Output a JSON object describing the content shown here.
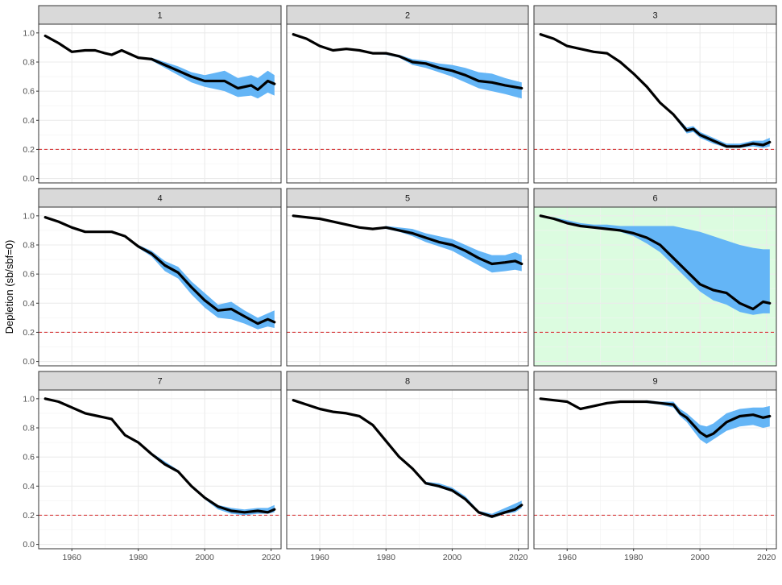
{
  "chart_data": {
    "type": "line",
    "title": "",
    "xlabel": "",
    "ylabel": "Depletion (sb/sbf=0)",
    "xlim": [
      1950,
      2023
    ],
    "ylim": [
      -0.03,
      1.06
    ],
    "x_ticks": [
      1960,
      1980,
      2000,
      2020
    ],
    "y_ticks": [
      0.0,
      0.2,
      0.4,
      0.6,
      0.8,
      1.0
    ],
    "y_tick_labels": [
      "0.0",
      "0.2",
      "0.4",
      "0.6",
      "0.8",
      "1.0"
    ],
    "reference_line": {
      "y": 0.2,
      "style": "dashed",
      "color": "#d62728"
    },
    "grid": true,
    "legend": "none",
    "colors": {
      "line": "#000000",
      "ribbon": "#64b5f6",
      "highlight_background": "#dcfce0",
      "strip_background": "#d9d9d9",
      "grid": "#ebebeb"
    },
    "panels": [
      {
        "label": "1",
        "highlight": false,
        "x": [
          1952,
          1956,
          1960,
          1964,
          1967,
          1970,
          1972,
          1975,
          1978,
          1980,
          1984,
          1988,
          1992,
          1996,
          2000,
          2004,
          2006,
          2010,
          2014,
          2016,
          2019,
          2021
        ],
        "y": [
          0.98,
          0.93,
          0.87,
          0.88,
          0.88,
          0.86,
          0.85,
          0.88,
          0.85,
          0.83,
          0.82,
          0.78,
          0.74,
          0.7,
          0.67,
          0.67,
          0.67,
          0.62,
          0.64,
          0.61,
          0.67,
          0.65
        ],
        "lo": [
          0.98,
          0.93,
          0.87,
          0.88,
          0.88,
          0.86,
          0.85,
          0.88,
          0.85,
          0.83,
          0.81,
          0.76,
          0.71,
          0.66,
          0.63,
          0.61,
          0.6,
          0.56,
          0.57,
          0.55,
          0.59,
          0.57
        ],
        "hi": [
          0.98,
          0.93,
          0.87,
          0.88,
          0.88,
          0.86,
          0.85,
          0.88,
          0.85,
          0.83,
          0.83,
          0.8,
          0.77,
          0.73,
          0.71,
          0.73,
          0.74,
          0.69,
          0.71,
          0.69,
          0.74,
          0.71
        ]
      },
      {
        "label": "2",
        "highlight": false,
        "x": [
          1952,
          1956,
          1960,
          1964,
          1968,
          1972,
          1976,
          1980,
          1984,
          1988,
          1992,
          1996,
          2000,
          2004,
          2008,
          2012,
          2016,
          2021
        ],
        "y": [
          0.99,
          0.96,
          0.91,
          0.88,
          0.89,
          0.88,
          0.86,
          0.86,
          0.84,
          0.8,
          0.79,
          0.76,
          0.74,
          0.71,
          0.67,
          0.66,
          0.64,
          0.62
        ],
        "lo": [
          0.99,
          0.96,
          0.91,
          0.88,
          0.89,
          0.88,
          0.86,
          0.85,
          0.83,
          0.78,
          0.76,
          0.73,
          0.7,
          0.66,
          0.62,
          0.6,
          0.58,
          0.55
        ],
        "hi": [
          0.99,
          0.96,
          0.91,
          0.88,
          0.89,
          0.88,
          0.86,
          0.86,
          0.85,
          0.82,
          0.81,
          0.79,
          0.78,
          0.76,
          0.73,
          0.72,
          0.69,
          0.66
        ]
      },
      {
        "label": "3",
        "highlight": false,
        "x": [
          1952,
          1956,
          1960,
          1964,
          1968,
          1972,
          1976,
          1980,
          1984,
          1988,
          1992,
          1996,
          1998,
          2000,
          2004,
          2008,
          2012,
          2016,
          2019,
          2021
        ],
        "y": [
          0.99,
          0.96,
          0.91,
          0.89,
          0.87,
          0.86,
          0.8,
          0.72,
          0.63,
          0.52,
          0.44,
          0.33,
          0.34,
          0.3,
          0.26,
          0.22,
          0.22,
          0.24,
          0.23,
          0.25
        ],
        "lo": [
          0.99,
          0.96,
          0.91,
          0.89,
          0.87,
          0.86,
          0.8,
          0.72,
          0.63,
          0.52,
          0.43,
          0.31,
          0.32,
          0.28,
          0.24,
          0.21,
          0.21,
          0.22,
          0.21,
          0.22
        ],
        "hi": [
          0.99,
          0.96,
          0.91,
          0.89,
          0.87,
          0.86,
          0.8,
          0.72,
          0.63,
          0.52,
          0.45,
          0.35,
          0.36,
          0.32,
          0.28,
          0.24,
          0.24,
          0.26,
          0.26,
          0.28
        ]
      },
      {
        "label": "4",
        "highlight": false,
        "x": [
          1952,
          1956,
          1960,
          1964,
          1968,
          1972,
          1976,
          1980,
          1984,
          1988,
          1992,
          1996,
          2000,
          2004,
          2008,
          2012,
          2016,
          2019,
          2021
        ],
        "y": [
          0.99,
          0.96,
          0.92,
          0.89,
          0.89,
          0.89,
          0.86,
          0.79,
          0.74,
          0.66,
          0.61,
          0.51,
          0.42,
          0.35,
          0.36,
          0.31,
          0.26,
          0.29,
          0.27
        ],
        "lo": [
          0.99,
          0.96,
          0.92,
          0.89,
          0.89,
          0.89,
          0.86,
          0.78,
          0.72,
          0.62,
          0.57,
          0.46,
          0.37,
          0.3,
          0.29,
          0.26,
          0.22,
          0.24,
          0.23
        ],
        "hi": [
          0.99,
          0.96,
          0.92,
          0.89,
          0.89,
          0.89,
          0.86,
          0.8,
          0.76,
          0.69,
          0.65,
          0.55,
          0.47,
          0.39,
          0.41,
          0.35,
          0.3,
          0.33,
          0.35
        ]
      },
      {
        "label": "5",
        "highlight": false,
        "x": [
          1952,
          1956,
          1960,
          1964,
          1968,
          1972,
          1976,
          1980,
          1984,
          1988,
          1992,
          1996,
          2000,
          2004,
          2008,
          2012,
          2016,
          2019,
          2021
        ],
        "y": [
          1.0,
          0.99,
          0.98,
          0.96,
          0.94,
          0.92,
          0.91,
          0.92,
          0.9,
          0.88,
          0.85,
          0.82,
          0.8,
          0.76,
          0.71,
          0.67,
          0.68,
          0.69,
          0.67
        ],
        "lo": [
          1.0,
          0.99,
          0.98,
          0.96,
          0.94,
          0.92,
          0.91,
          0.91,
          0.89,
          0.86,
          0.82,
          0.79,
          0.76,
          0.71,
          0.66,
          0.61,
          0.62,
          0.63,
          0.62
        ],
        "hi": [
          1.0,
          0.99,
          0.98,
          0.96,
          0.94,
          0.92,
          0.91,
          0.93,
          0.92,
          0.91,
          0.88,
          0.86,
          0.84,
          0.8,
          0.76,
          0.73,
          0.73,
          0.75,
          0.73
        ]
      },
      {
        "label": "6",
        "highlight": true,
        "x": [
          1952,
          1956,
          1960,
          1964,
          1968,
          1972,
          1976,
          1980,
          1984,
          1988,
          1992,
          1996,
          2000,
          2004,
          2008,
          2012,
          2016,
          2019,
          2021
        ],
        "y": [
          1.0,
          0.98,
          0.95,
          0.93,
          0.92,
          0.91,
          0.9,
          0.88,
          0.85,
          0.8,
          0.71,
          0.62,
          0.53,
          0.49,
          0.47,
          0.4,
          0.36,
          0.41,
          0.4
        ],
        "lo": [
          1.0,
          0.98,
          0.95,
          0.93,
          0.92,
          0.91,
          0.89,
          0.86,
          0.81,
          0.75,
          0.66,
          0.57,
          0.48,
          0.42,
          0.39,
          0.34,
          0.32,
          0.33,
          0.33
        ],
        "hi": [
          1.0,
          0.99,
          0.97,
          0.95,
          0.94,
          0.94,
          0.93,
          0.93,
          0.93,
          0.93,
          0.93,
          0.91,
          0.89,
          0.86,
          0.83,
          0.8,
          0.78,
          0.77,
          0.77
        ]
      },
      {
        "label": "7",
        "highlight": false,
        "x": [
          1952,
          1956,
          1960,
          1964,
          1968,
          1972,
          1976,
          1980,
          1984,
          1988,
          1992,
          1996,
          2000,
          2004,
          2008,
          2012,
          2016,
          2019,
          2021
        ],
        "y": [
          1.0,
          0.98,
          0.94,
          0.9,
          0.88,
          0.86,
          0.75,
          0.7,
          0.62,
          0.55,
          0.5,
          0.4,
          0.32,
          0.26,
          0.23,
          0.22,
          0.23,
          0.22,
          0.24
        ],
        "lo": [
          1.0,
          0.98,
          0.94,
          0.9,
          0.88,
          0.86,
          0.75,
          0.69,
          0.61,
          0.54,
          0.49,
          0.39,
          0.31,
          0.24,
          0.21,
          0.2,
          0.21,
          0.21,
          0.22
        ],
        "hi": [
          1.0,
          0.98,
          0.94,
          0.9,
          0.88,
          0.86,
          0.75,
          0.71,
          0.63,
          0.57,
          0.51,
          0.41,
          0.33,
          0.27,
          0.25,
          0.24,
          0.25,
          0.25,
          0.27
        ]
      },
      {
        "label": "8",
        "highlight": false,
        "x": [
          1952,
          1956,
          1960,
          1964,
          1968,
          1972,
          1976,
          1980,
          1984,
          1988,
          1992,
          1996,
          2000,
          2004,
          2008,
          2012,
          2016,
          2019,
          2021
        ],
        "y": [
          0.99,
          0.96,
          0.93,
          0.91,
          0.9,
          0.88,
          0.82,
          0.71,
          0.6,
          0.52,
          0.42,
          0.4,
          0.37,
          0.31,
          0.22,
          0.19,
          0.22,
          0.24,
          0.27
        ],
        "lo": [
          0.99,
          0.96,
          0.93,
          0.91,
          0.9,
          0.88,
          0.82,
          0.71,
          0.59,
          0.51,
          0.41,
          0.39,
          0.36,
          0.3,
          0.21,
          0.18,
          0.21,
          0.22,
          0.25
        ],
        "hi": [
          0.99,
          0.96,
          0.93,
          0.91,
          0.9,
          0.88,
          0.82,
          0.72,
          0.61,
          0.53,
          0.43,
          0.42,
          0.39,
          0.33,
          0.23,
          0.21,
          0.25,
          0.28,
          0.3
        ]
      },
      {
        "label": "9",
        "highlight": false,
        "x": [
          1952,
          1956,
          1960,
          1964,
          1968,
          1972,
          1976,
          1980,
          1984,
          1988,
          1992,
          1994,
          1996,
          2000,
          2002,
          2004,
          2008,
          2012,
          2016,
          2019,
          2021
        ],
        "y": [
          1.0,
          0.99,
          0.98,
          0.93,
          0.95,
          0.97,
          0.98,
          0.98,
          0.98,
          0.97,
          0.96,
          0.9,
          0.87,
          0.77,
          0.74,
          0.76,
          0.84,
          0.88,
          0.89,
          0.87,
          0.88
        ],
        "lo": [
          1.0,
          0.99,
          0.98,
          0.93,
          0.95,
          0.97,
          0.98,
          0.98,
          0.97,
          0.96,
          0.94,
          0.88,
          0.84,
          0.72,
          0.69,
          0.72,
          0.78,
          0.81,
          0.82,
          0.8,
          0.81
        ],
        "hi": [
          1.0,
          0.99,
          0.98,
          0.93,
          0.95,
          0.97,
          0.98,
          0.98,
          0.99,
          0.98,
          0.98,
          0.93,
          0.9,
          0.82,
          0.81,
          0.83,
          0.9,
          0.93,
          0.94,
          0.94,
          0.95
        ]
      }
    ]
  }
}
